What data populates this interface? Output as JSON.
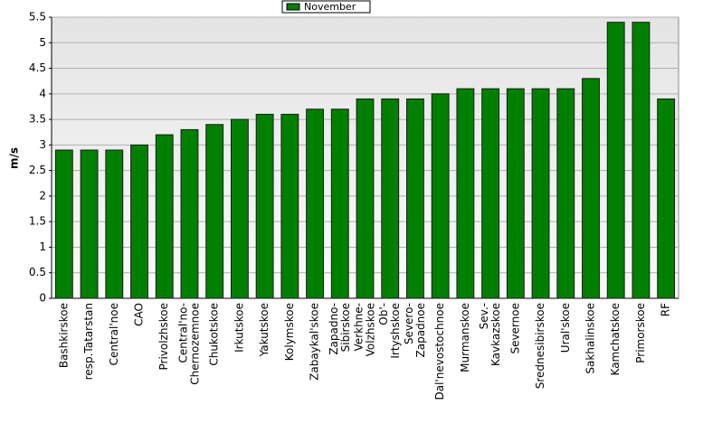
{
  "chart_data": {
    "type": "bar",
    "y_label": "m/s",
    "categories": [
      "Bashkirskoe",
      "resp.Tatarstan",
      "Central'noe",
      "CAO",
      "Privolzhskoe",
      "Central'no-\nChernozemnoe",
      "Chukotskoe",
      "Irkutskoe",
      "Yakutskoe",
      "Kolymskoe",
      "Zabaykal'skoe",
      "Zapadno-\nSibirskoe",
      "Verkhne-\nVolzhskoe",
      "Ob'-\nIrtyshskoe",
      "Severo-\nZapadnoe",
      "Dal'nevostochnoe",
      "Murmanskoe",
      "Sev.-\nKavkazskoe",
      "Severnoe",
      "Srednesibirskoe",
      "Ural'skoe",
      "Sakhalinskoe",
      "Kamchatskoe",
      "Primorskoe",
      "RF"
    ],
    "series": [
      {
        "name": "November",
        "color": "#008000",
        "values": [
          2.9,
          2.9,
          2.9,
          3.0,
          3.2,
          3.3,
          3.4,
          3.5,
          3.6,
          3.6,
          3.7,
          3.7,
          3.9,
          3.9,
          3.9,
          4.0,
          4.1,
          4.1,
          4.1,
          4.1,
          4.1,
          4.3,
          5.4,
          5.4,
          3.9
        ]
      }
    ],
    "ylim": [
      0,
      5.5
    ],
    "yticks": [
      0,
      0.5,
      1,
      1.5,
      2,
      2.5,
      3,
      3.5,
      4,
      4.5,
      5,
      5.5
    ],
    "grid": true,
    "legend": "top"
  }
}
